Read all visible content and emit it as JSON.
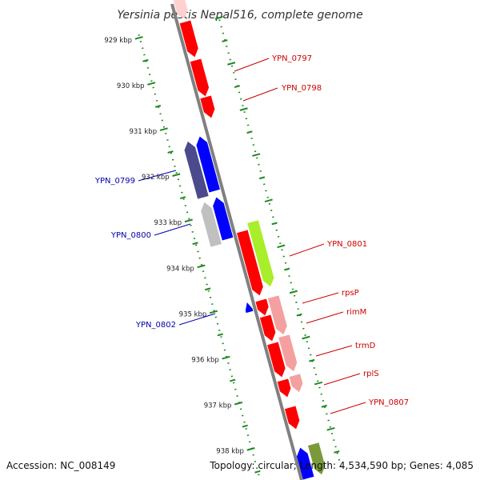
{
  "title": "Yersinia pestis Nepal516, complete genome",
  "footer": {
    "accession": "Accession: NC_008149",
    "topology": "Topology: circular; Length: 4,534,590 bp; Genes: 4,085"
  },
  "colors": {
    "backbone": "#808080",
    "ruler": "#1f8a1f",
    "forward_label": "#cc0000",
    "reverse_label": "#0000aa",
    "red": "#ff0000",
    "pink": "#f4a0a0",
    "light_pink": "#ffd0d0",
    "blue": "#0000ff",
    "navy": "#4a4a8c",
    "grey": "#c0c0c0",
    "lime": "#a8ee2a",
    "olive": "#7a9a3a"
  },
  "ticks": [
    {
      "label": "929 kbp"
    },
    {
      "label": "930 kbp"
    },
    {
      "label": "931 kbp"
    },
    {
      "label": "932 kbp"
    },
    {
      "label": "933 kbp"
    },
    {
      "label": "934 kbp"
    },
    {
      "label": "935 kbp"
    },
    {
      "label": "936 kbp"
    },
    {
      "label": "937 kbp"
    },
    {
      "label": "938 kbp"
    }
  ],
  "gene_labels": [
    {
      "name": "YPN_0797",
      "strand": "forward"
    },
    {
      "name": "YPN_0798",
      "strand": "forward"
    },
    {
      "name": "YPN_0799",
      "strand": "reverse"
    },
    {
      "name": "YPN_0800",
      "strand": "reverse"
    },
    {
      "name": "YPN_0801",
      "strand": "forward"
    },
    {
      "name": "YPN_0802",
      "strand": "reverse"
    },
    {
      "name": "rpsP",
      "strand": "forward"
    },
    {
      "name": "rimM",
      "strand": "forward"
    },
    {
      "name": "trmD",
      "strand": "forward"
    },
    {
      "name": "rplS",
      "strand": "forward"
    },
    {
      "name": "YPN_0807",
      "strand": "forward"
    }
  ]
}
